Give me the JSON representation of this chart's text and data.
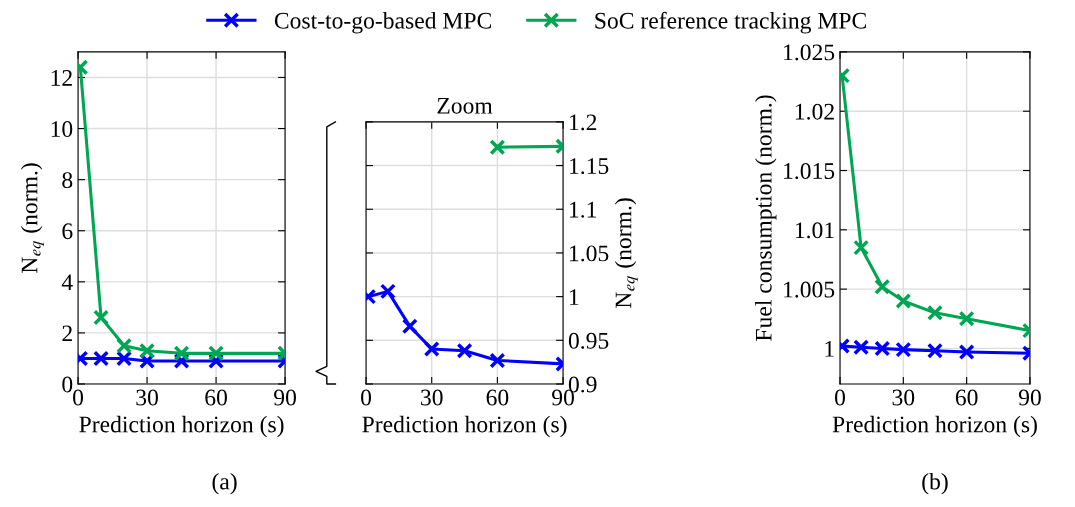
{
  "chart_data": [
    {
      "type": "line",
      "x": [
        1,
        10,
        20,
        30,
        45,
        60,
        90
      ],
      "xlabel": "Prediction horizon (s)",
      "ylabel": "N$_{eq}$ (norm.)",
      "xlim": [
        0,
        90
      ],
      "xticks": [
        0,
        30,
        60,
        90
      ],
      "ylim": [
        0,
        13
      ],
      "yticks": [
        0,
        2,
        4,
        6,
        8,
        10,
        12
      ],
      "grid": true,
      "marker": "cross",
      "line_style": "solid",
      "legend": "top",
      "annotations": [
        "(a)"
      ],
      "series": [
        {
          "name": "Cost-to-go-based MPC",
          "color": "#0000ff",
          "values": [
            1.0,
            1.0,
            1.0,
            0.9,
            0.9,
            0.9,
            0.9
          ]
        },
        {
          "name": "SoC reference tracking MPC",
          "color": "#00a651",
          "values": [
            12.4,
            2.6,
            1.5,
            1.3,
            1.2,
            1.2,
            1.2
          ]
        }
      ]
    },
    {
      "type": "line",
      "title": "Zoom",
      "x": [
        1,
        10,
        20,
        30,
        45,
        60,
        90
      ],
      "xlabel": "Prediction horizon (s)",
      "y2label": "N$_{eq}$ (norm.)",
      "xlim": [
        0,
        90
      ],
      "xticks": [
        0,
        30,
        60,
        90
      ],
      "y2lim": [
        0.9,
        1.2
      ],
      "y2ticks": [
        0.9,
        0.95,
        1,
        1.05,
        1.1,
        1.15,
        1.2
      ],
      "grid": true,
      "marker": "cross",
      "line_style": "solid",
      "series": [
        {
          "color": "#0000ff",
          "axis": "y2",
          "values": [
            1.0,
            1.006,
            0.966,
            0.94,
            0.938,
            0.927,
            0.923
          ]
        },
        {
          "color": "#00a651",
          "axis": "y2",
          "values": [
            null,
            null,
            null,
            null,
            null,
            1.171,
            1.172
          ]
        }
      ]
    },
    {
      "type": "line",
      "x": [
        1,
        10,
        20,
        30,
        45,
        60,
        90
      ],
      "xlabel": "Prediction horizon (s)",
      "ylabel": "Fuel consumption (norm.)",
      "xlim": [
        0,
        90
      ],
      "xticks": [
        0,
        30,
        60,
        90
      ],
      "ylim": [
        0.997,
        1.025
      ],
      "yticks": [
        1,
        1.005,
        1.01,
        1.015,
        1.02,
        1.025
      ],
      "grid": true,
      "marker": "cross",
      "line_style": "solid",
      "annotations": [
        "(b)"
      ],
      "series": [
        {
          "color": "#0000ff",
          "values": [
            1.0002,
            1.0001,
            1.0,
            0.9999,
            0.9998,
            0.9997,
            0.9996
          ]
        },
        {
          "color": "#00a651",
          "values": [
            1.023,
            1.0085,
            1.0052,
            1.004,
            1.003,
            1.0025,
            1.0015
          ]
        }
      ]
    }
  ]
}
